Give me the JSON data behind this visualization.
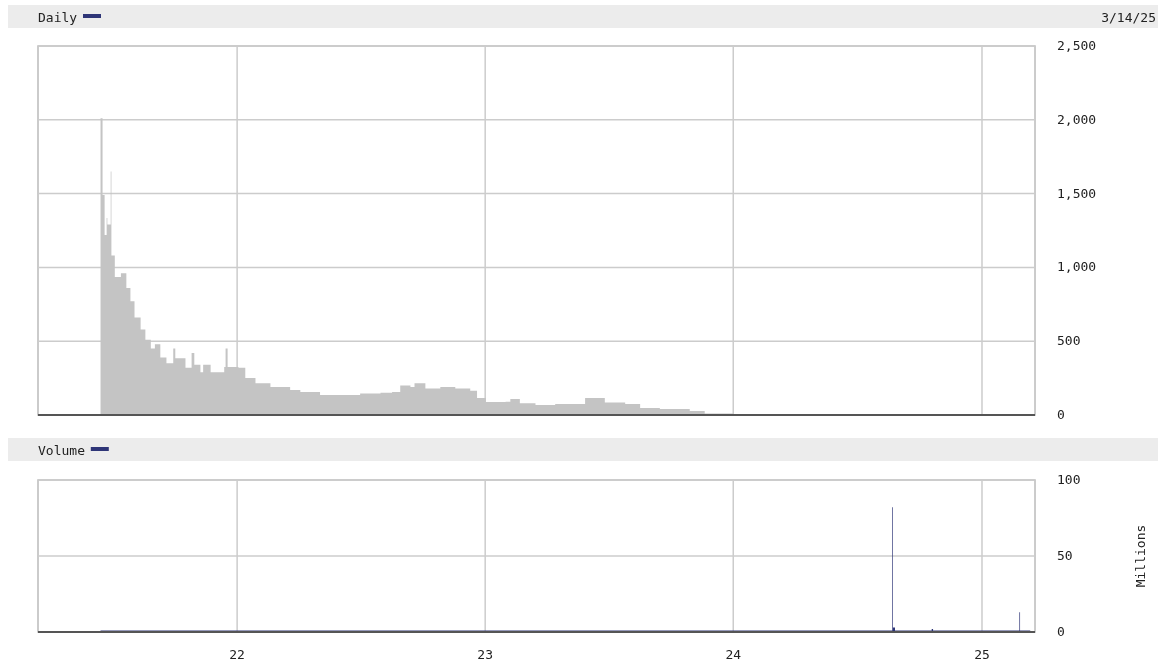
{
  "chart_data": [
    {
      "type": "area",
      "title": "Daily",
      "annotations": [
        "3/14/25"
      ],
      "x": [
        "2021-06-13",
        "2021-06-14",
        "2021-06-17",
        "2021-06-20",
        "2021-06-23",
        "2021-06-24",
        "2021-06-29",
        "2021-06-30",
        "2021-07-05",
        "2021-07-14",
        "2021-07-22",
        "2021-07-28",
        "2021-08-03",
        "2021-08-12",
        "2021-08-19",
        "2021-08-27",
        "2021-09-02",
        "2021-09-10",
        "2021-09-19",
        "2021-09-29",
        "2021-10-02",
        "2021-10-17",
        "2021-10-26",
        "2021-10-30",
        "2021-11-08",
        "2021-11-12",
        "2021-11-23",
        "2021-12-13",
        "2021-12-15",
        "2021-12-18",
        "2022-01-03",
        "2022-01-13",
        "2022-01-28",
        "2022-02-19",
        "2022-03-20",
        "2022-04-04",
        "2022-05-03",
        "2022-06-09",
        "2022-07-01",
        "2022-07-31",
        "2022-08-17",
        "2022-08-29",
        "2022-09-13",
        "2022-09-19",
        "2022-10-05",
        "2022-10-27",
        "2022-11-18",
        "2022-12-10",
        "2022-12-20",
        "2023-01-02",
        "2023-01-31",
        "2023-02-07",
        "2023-02-21",
        "2023-03-16",
        "2023-04-14",
        "2023-05-28",
        "2023-06-26",
        "2023-07-26",
        "2023-08-17",
        "2023-09-15",
        "2023-10-29",
        "2023-11-20",
        "2024-01-01",
        "2024-04-08",
        "2024-09-02",
        "2025-03-13"
      ],
      "series": [
        {
          "color": "#c4c4c4",
          "values": [
            0,
            2010,
            1490,
            1220,
            1335,
            1290,
            1650,
            1080,
            935,
            960,
            860,
            770,
            660,
            580,
            510,
            450,
            480,
            390,
            350,
            450,
            385,
            320,
            420,
            340,
            290,
            340,
            290,
            325,
            450,
            325,
            320,
            250,
            215,
            190,
            170,
            155,
            135,
            135,
            145,
            150,
            155,
            200,
            190,
            215,
            180,
            190,
            180,
            165,
            115,
            88,
            90,
            108,
            80,
            68,
            75,
            115,
            85,
            75,
            47,
            40,
            27,
            10,
            5,
            3,
            2,
            2
          ]
        }
      ],
      "xlim": [
        "2021-03-14",
        "2025-03-20"
      ],
      "xticks": [
        {
          "value": "2022-01-01",
          "label": null
        },
        {
          "value": "2023-01-01",
          "label": null
        },
        {
          "value": "2024-01-01",
          "label": null
        },
        {
          "value": "2025-01-01",
          "label": null
        }
      ],
      "ylim": [
        0,
        2500
      ],
      "yticks": [
        0,
        500,
        {
          "value": 1000,
          "label": "1,000"
        },
        {
          "value": 1500,
          "label": "1,500"
        },
        {
          "value": 2000,
          "label": "2,000"
        },
        {
          "value": 2500,
          "label": "2,500"
        }
      ],
      "grid": true,
      "tick_labels": "y"
    },
    {
      "type": "area",
      "title": "Volume",
      "ylabel": "Millions",
      "x": [
        "2021-06-14",
        "2024-08-21",
        "2024-08-22",
        "2024-08-23",
        "2024-08-26",
        "2024-10-18",
        "2024-10-19",
        "2024-10-21",
        "2025-02-24",
        "2025-02-25",
        "2025-02-26",
        "2025-03-13"
      ],
      "series": [
        {
          "color": "#2e3577",
          "values": [
            1,
            1,
            82,
            3,
            1,
            1,
            2,
            1,
            1,
            13,
            1,
            1
          ]
        }
      ],
      "xlim": [
        "2021-03-14",
        "2025-03-20"
      ],
      "xticks": [
        {
          "value": "2022-01-01",
          "label": "22"
        },
        {
          "value": "2023-01-01",
          "label": "23"
        },
        {
          "value": "2024-01-01",
          "label": "24"
        },
        {
          "value": "2025-01-01",
          "label": "25"
        }
      ],
      "ylim": [
        0,
        100
      ],
      "yticks": [
        0,
        50,
        100
      ],
      "grid": true
    }
  ]
}
